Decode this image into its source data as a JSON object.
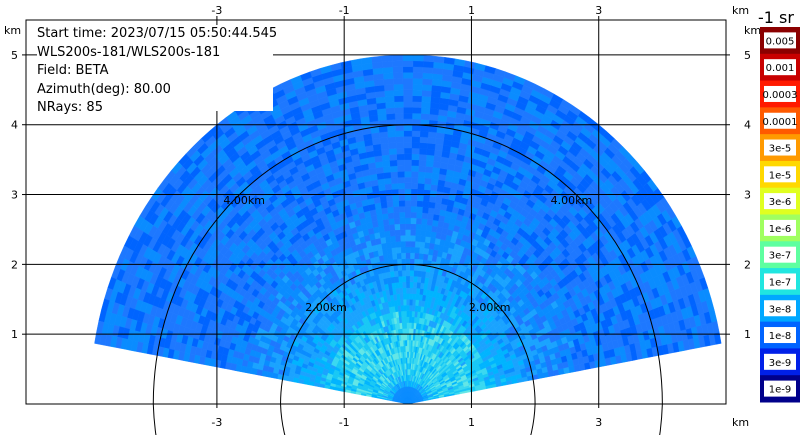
{
  "chart_data": {
    "type": "heatmap",
    "subtype": "radar-ppi-sector",
    "info_lines": [
      "Start time: 2023/07/15 05:50:44.545",
      "WLS200s-181/WLS200s-181",
      "Field: BETA",
      "Azimuth(deg): 80.00",
      "NRays: 85"
    ],
    "x_unit": "km",
    "y_unit": "km",
    "x_ticks": [
      -3,
      -1,
      1,
      3
    ],
    "y_ticks": [
      1,
      2,
      3,
      4,
      5
    ],
    "xlim": [
      -6.0,
      5.0
    ],
    "ylim": [
      0.0,
      5.5
    ],
    "grid": true,
    "range_rings": [
      {
        "r_km": 2.0,
        "label": "2.00km"
      },
      {
        "r_km": 4.0,
        "label": "4.00km"
      }
    ],
    "sector": {
      "max_range_km": 5.0,
      "angle_start_deg": 10,
      "angle_end_deg": 170
    },
    "field": "BETA",
    "colorbar": {
      "title": "-1 sr",
      "labels": [
        "0.005",
        "0.001",
        "0.0003",
        "0.0001",
        "3e-5",
        "1e-5",
        "3e-6",
        "1e-6",
        "3e-7",
        "1e-7",
        "3e-8",
        "1e-8",
        "3e-9",
        "1e-9"
      ],
      "colors": [
        "#8b0000",
        "#c80000",
        "#ff1a00",
        "#ff5a00",
        "#ff9a00",
        "#ffd800",
        "#e0ff20",
        "#a0ff60",
        "#5effa0",
        "#20e6e0",
        "#00a8ff",
        "#0064ff",
        "#0020e8",
        "#00008b"
      ]
    },
    "profile": [
      {
        "r_km": 0.1,
        "beta": "3e-8"
      },
      {
        "r_km": 0.5,
        "beta": "1e-7"
      },
      {
        "r_km": 1.0,
        "beta": "1e-7"
      },
      {
        "r_km": 2.0,
        "beta": "3e-8"
      },
      {
        "r_km": 3.0,
        "beta": "1e-8"
      },
      {
        "r_km": 5.0,
        "beta": "1e-8"
      }
    ]
  }
}
